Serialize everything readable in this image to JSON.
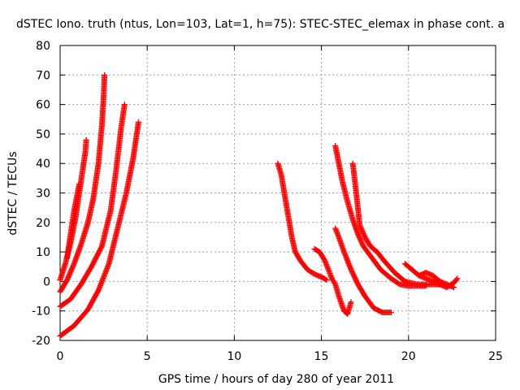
{
  "chart_data": {
    "type": "scatter",
    "title": "dSTEC Iono. truth (ntus, Lon=103, Lat=1, h=75): STEC-STEC_elemax in phase cont. a",
    "xlabel": "GPS time / hours of day 280 of year 2011",
    "ylabel": "dSTEC  / TECUs",
    "xlim": [
      0,
      25
    ],
    "ylim": [
      -20,
      80
    ],
    "xticks": [
      0,
      5,
      10,
      15,
      20,
      25
    ],
    "yticks": [
      -20,
      -10,
      0,
      10,
      20,
      30,
      40,
      50,
      60,
      70,
      80
    ],
    "grid": true,
    "marker": "+",
    "color": "#ff0000",
    "series": [
      {
        "points": [
          [
            0.0,
            0.5
          ],
          [
            0.3,
            6
          ],
          [
            0.6,
            13
          ],
          [
            0.9,
            22
          ],
          [
            1.1,
            30
          ],
          [
            1.3,
            38
          ],
          [
            1.45,
            44
          ],
          [
            1.5,
            48
          ]
        ]
      },
      {
        "points": [
          [
            0.4,
            8
          ],
          [
            0.6,
            16
          ],
          [
            0.8,
            24
          ],
          [
            1.0,
            30
          ],
          [
            1.1,
            33
          ]
        ]
      },
      {
        "points": [
          [
            0.0,
            -3.5
          ],
          [
            0.4,
            0.5
          ],
          [
            0.8,
            6
          ],
          [
            1.2,
            12.5
          ],
          [
            1.6,
            20
          ],
          [
            1.9,
            28
          ],
          [
            2.2,
            40
          ],
          [
            2.4,
            53
          ],
          [
            2.5,
            63
          ],
          [
            2.55,
            70
          ]
        ]
      },
      {
        "points": [
          [
            0.0,
            -8.5
          ],
          [
            0.6,
            -6
          ],
          [
            1.2,
            -1
          ],
          [
            1.8,
            5
          ],
          [
            2.4,
            12
          ],
          [
            2.9,
            24
          ],
          [
            3.2,
            37
          ],
          [
            3.5,
            52
          ],
          [
            3.7,
            60
          ]
        ]
      },
      {
        "points": [
          [
            0.0,
            -18.5
          ],
          [
            0.8,
            -15
          ],
          [
            1.6,
            -9.5
          ],
          [
            2.2,
            -3
          ],
          [
            2.8,
            6
          ],
          [
            3.3,
            18
          ],
          [
            3.8,
            30
          ],
          [
            4.2,
            42
          ],
          [
            4.5,
            54
          ]
        ]
      },
      {
        "points": [
          [
            12.5,
            40
          ],
          [
            12.7,
            36
          ],
          [
            12.9,
            29
          ],
          [
            13.1,
            22
          ],
          [
            13.3,
            15
          ],
          [
            13.5,
            10
          ],
          [
            13.8,
            7
          ],
          [
            14.2,
            4
          ],
          [
            14.6,
            2.5
          ],
          [
            15.0,
            1.5
          ],
          [
            15.3,
            0.5
          ]
        ]
      },
      {
        "points": [
          [
            14.6,
            11
          ],
          [
            14.9,
            10
          ],
          [
            15.2,
            7
          ],
          [
            15.4,
            4
          ],
          [
            15.6,
            1
          ],
          [
            15.8,
            -1
          ],
          [
            16.0,
            -5
          ],
          [
            16.3,
            -10
          ],
          [
            16.5,
            -11
          ],
          [
            16.7,
            -7
          ]
        ]
      },
      {
        "points": [
          [
            15.8,
            18
          ],
          [
            16.0,
            15
          ],
          [
            16.3,
            10
          ],
          [
            16.7,
            4
          ],
          [
            17.1,
            -1
          ],
          [
            17.5,
            -5
          ],
          [
            18.0,
            -9
          ],
          [
            18.5,
            -10.5
          ],
          [
            19.0,
            -10.5
          ]
        ]
      },
      {
        "points": [
          [
            15.8,
            46
          ],
          [
            16.0,
            40
          ],
          [
            16.2,
            34
          ],
          [
            16.5,
            27
          ],
          [
            16.8,
            21
          ],
          [
            17.1,
            16
          ],
          [
            17.4,
            12
          ],
          [
            17.9,
            8
          ],
          [
            18.4,
            4
          ],
          [
            19.0,
            1
          ],
          [
            19.5,
            -1
          ],
          [
            20.0,
            -1.5
          ],
          [
            20.5,
            -1.5
          ],
          [
            21.0,
            -1.5
          ]
        ]
      },
      {
        "points": [
          [
            16.8,
            40
          ],
          [
            17.0,
            30
          ],
          [
            17.2,
            19
          ],
          [
            17.5,
            15
          ],
          [
            17.8,
            12
          ],
          [
            18.2,
            10
          ],
          [
            18.6,
            7
          ],
          [
            19.2,
            3
          ],
          [
            19.8,
            0
          ],
          [
            20.5,
            -1
          ],
          [
            21.2,
            -1
          ],
          [
            22.0,
            -1
          ]
        ]
      },
      {
        "points": [
          [
            19.8,
            6
          ],
          [
            20.2,
            4
          ],
          [
            20.6,
            2
          ],
          [
            21.0,
            1
          ],
          [
            21.4,
            0
          ],
          [
            21.8,
            -1
          ],
          [
            22.2,
            -2
          ],
          [
            22.6,
            -0.5
          ],
          [
            22.8,
            1
          ]
        ]
      },
      {
        "points": [
          [
            20.6,
            2
          ],
          [
            21.0,
            3
          ],
          [
            21.4,
            2
          ],
          [
            21.8,
            0
          ],
          [
            22.2,
            -1
          ],
          [
            22.6,
            -2
          ]
        ]
      }
    ]
  }
}
